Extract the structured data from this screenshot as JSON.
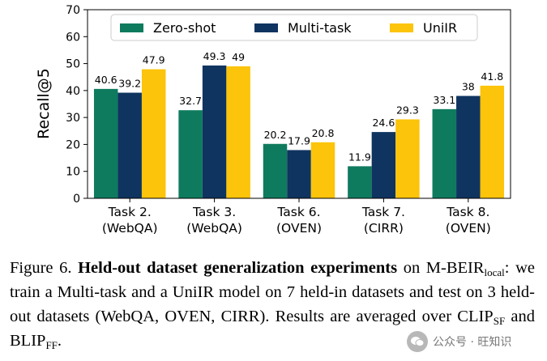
{
  "chart_data": {
    "type": "bar",
    "ylabel": "Recall@5",
    "ylim": [
      0,
      70
    ],
    "yticks": [
      0,
      10,
      20,
      30,
      40,
      50,
      60,
      70
    ],
    "categories": [
      {
        "line1": "Task 2.",
        "line2": "(WebQA)"
      },
      {
        "line1": "Task 3.",
        "line2": "(WebQA)"
      },
      {
        "line1": "Task 6.",
        "line2": "(OVEN)"
      },
      {
        "line1": "Task 7.",
        "line2": "(CIRR)"
      },
      {
        "line1": "Task 8.",
        "line2": "(OVEN)"
      }
    ],
    "series": [
      {
        "name": "Zero-shot",
        "color": "#0f7b5e",
        "values": [
          40.6,
          32.7,
          20.2,
          11.9,
          33.1
        ],
        "labels": [
          "40.6",
          "32.7",
          "20.2",
          "11.9",
          "33.1"
        ]
      },
      {
        "name": "Multi-task",
        "color": "#0f3460",
        "values": [
          39.2,
          49.3,
          17.9,
          24.6,
          38
        ],
        "labels": [
          "39.2",
          "49.3",
          "17.9",
          "24.6",
          "38"
        ]
      },
      {
        "name": "UniIR",
        "color": "#fcc40a",
        "values": [
          47.9,
          49,
          20.8,
          29.3,
          41.8
        ],
        "labels": [
          "47.9",
          "49",
          "20.8",
          "29.3",
          "41.8"
        ]
      }
    ],
    "legend_position": "top-center"
  },
  "caption": {
    "figure_label": "Figure 6.",
    "title": "Held-out dataset generalization experiments",
    "text_1": " on M-BEIR",
    "sub_1": "local",
    "text_2": ": we train a Multi-task and a UniIR model on 7 held-in datasets and test on 3 held-out datasets (WebQA, OVEN, CIRR). Results are averaged over CLIP",
    "sub_2": "SF",
    "text_3": " and BLIP",
    "sub_3": "FF",
    "text_4": "."
  },
  "watermark": {
    "text": "公众号 · 旺知识"
  }
}
